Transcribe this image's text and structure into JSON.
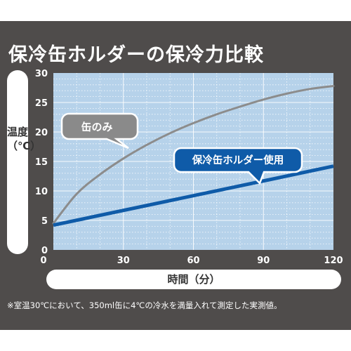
{
  "title": "保冷缶ホルダーの保冷力比較",
  "footnote": "※室温30℃において、350ml缶に4℃の冷水を満量入れて測定した実測値。",
  "colors": {
    "panel": "#4f4c4b",
    "plot_bg": "#b6d2ea",
    "grid": "#ffffff",
    "series_can": "#8c8c8c",
    "series_holder": "#0f5ba8"
  },
  "chart_data": {
    "type": "line",
    "xlabel": "時間（分）",
    "ylabel": "温度（℃）",
    "xlim": [
      0,
      120
    ],
    "ylim": [
      0,
      30
    ],
    "xticks": [
      0,
      30,
      60,
      90,
      120
    ],
    "yticks": [
      0,
      5,
      10,
      15,
      20,
      25,
      30
    ],
    "grid": true,
    "series": [
      {
        "name": "缶のみ",
        "x": [
          0,
          10,
          20,
          30,
          40,
          50,
          60,
          70,
          80,
          90,
          100,
          110,
          120
        ],
        "values": [
          4.5,
          9.5,
          12.8,
          15.5,
          17.8,
          19.8,
          21.5,
          23.0,
          24.3,
          25.5,
          26.5,
          27.3,
          27.8
        ]
      },
      {
        "name": "保冷缶ホルダー使用",
        "x": [
          0,
          120
        ],
        "values": [
          4.2,
          14.2
        ]
      }
    ]
  }
}
